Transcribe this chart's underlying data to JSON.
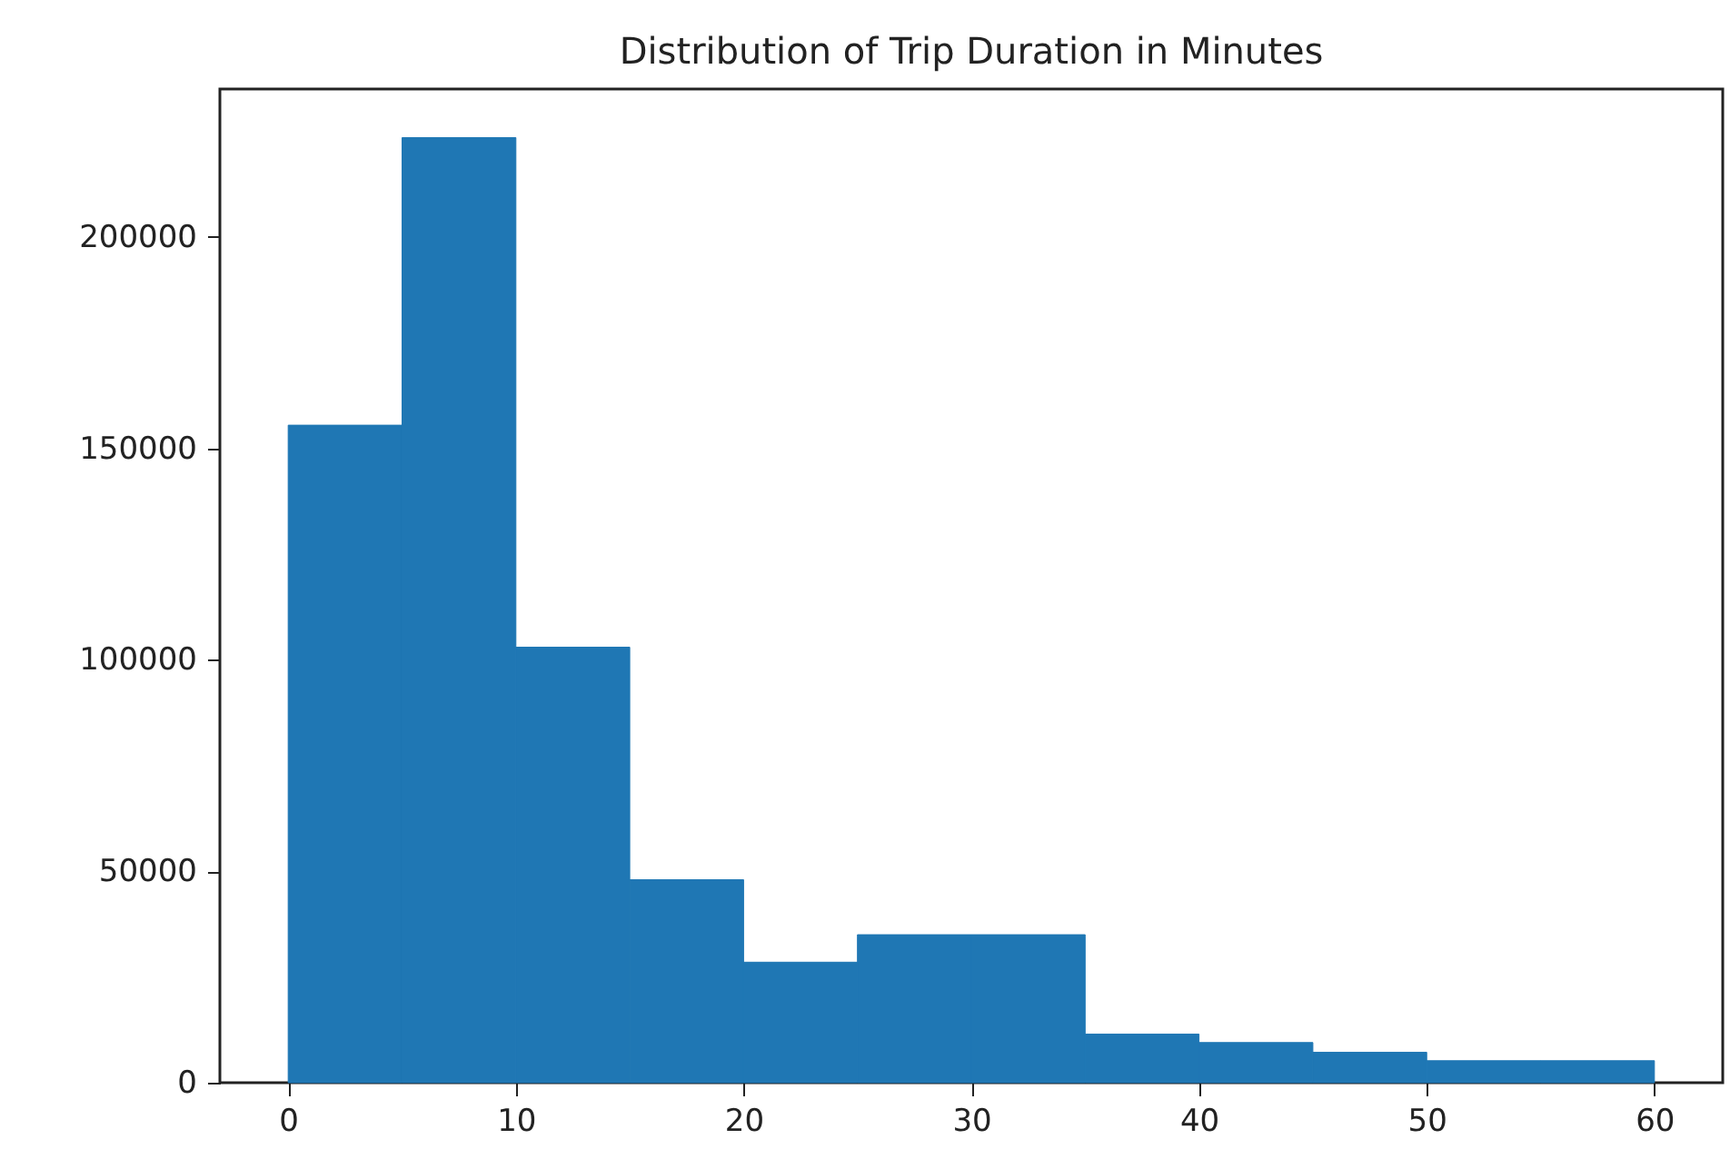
{
  "chart_data": {
    "type": "histogram",
    "title": "Distribution of Trip Duration in Minutes",
    "bins": [
      0,
      5,
      10,
      15,
      20,
      25,
      30,
      35,
      40,
      45,
      50,
      55,
      60
    ],
    "values": [
      155500,
      223500,
      103000,
      48000,
      28500,
      35000,
      35000,
      11500,
      9500,
      7200,
      5200,
      5200
    ],
    "color": "#1f77b4",
    "xlim": [
      -3,
      63
    ],
    "xticks": [
      0,
      10,
      20,
      30,
      40,
      50,
      60
    ],
    "ylim": [
      0,
      235000
    ],
    "yticks": [
      0,
      50000,
      100000,
      150000,
      200000
    ],
    "grid": false
  }
}
